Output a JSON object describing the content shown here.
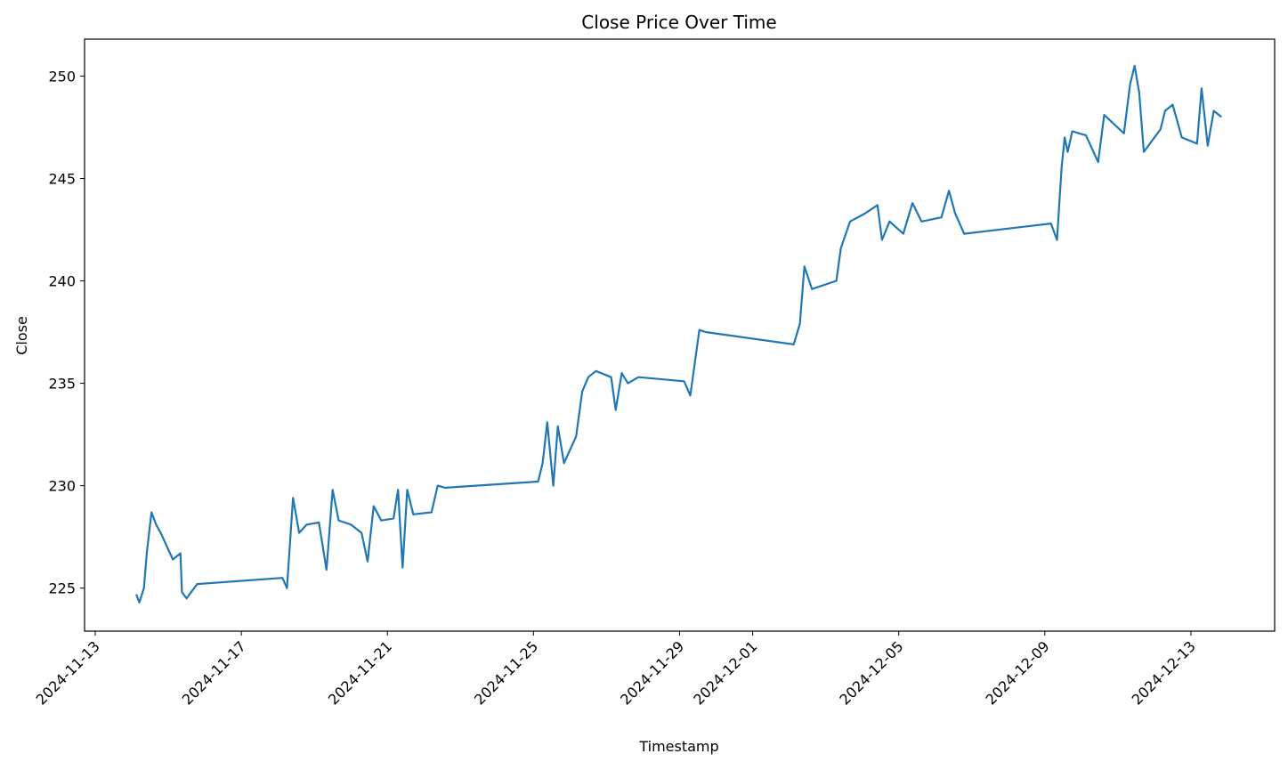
{
  "chart_data": {
    "type": "line",
    "title": "Close Price Over Time",
    "x_label": "Timestamp",
    "y_label": "Close",
    "x": [
      "2024-11-14 03:00",
      "2024-11-14 05:00",
      "2024-11-14 08:00",
      "2024-11-14 10:00",
      "2024-11-14 13:00",
      "2024-11-14 16:00",
      "2024-11-14 19:00",
      "2024-11-15 03:00",
      "2024-11-15 08:00",
      "2024-11-15 09:00",
      "2024-11-15 12:00",
      "2024-11-15 19:00",
      "2024-11-18 03:00",
      "2024-11-18 06:00",
      "2024-11-18 10:00",
      "2024-11-18 14:00",
      "2024-11-18 19:00",
      "2024-11-19 03:00",
      "2024-11-19 08:00",
      "2024-11-19 12:00",
      "2024-11-19 16:00",
      "2024-11-20 00:00",
      "2024-11-20 07:00",
      "2024-11-20 11:00",
      "2024-11-20 15:00",
      "2024-11-20 20:00",
      "2024-11-21 04:00",
      "2024-11-21 07:00",
      "2024-11-21 10:00",
      "2024-11-21 13:00",
      "2024-11-21 17:00",
      "2024-11-22 05:00",
      "2024-11-22 09:00",
      "2024-11-22 14:00",
      "2024-11-25 03:00",
      "2024-11-25 06:00",
      "2024-11-25 09:00",
      "2024-11-25 13:00",
      "2024-11-25 16:00",
      "2024-11-25 20:00",
      "2024-11-26 04:00",
      "2024-11-26 08:00",
      "2024-11-26 12:00",
      "2024-11-26 17:00",
      "2024-11-27 03:00",
      "2024-11-27 06:00",
      "2024-11-27 10:00",
      "2024-11-27 14:00",
      "2024-11-27 21:00",
      "2024-11-29 03:00",
      "2024-11-29 07:00",
      "2024-11-29 13:00",
      "2024-11-29 17:00",
      "2024-12-02 03:00",
      "2024-12-02 07:00",
      "2024-12-02 10:00",
      "2024-12-02 15:00",
      "2024-12-03 07:00",
      "2024-12-03 10:00",
      "2024-12-03 16:00",
      "2024-12-04 02:00",
      "2024-12-04 10:00",
      "2024-12-04 13:00",
      "2024-12-04 18:00",
      "2024-12-05 03:00",
      "2024-12-05 09:00",
      "2024-12-05 15:00",
      "2024-12-06 04:00",
      "2024-12-06 09:00",
      "2024-12-06 13:00",
      "2024-12-06 19:00",
      "2024-12-09 04:00",
      "2024-12-09 08:00",
      "2024-12-09 11:00",
      "2024-12-09 13:00",
      "2024-12-09 15:00",
      "2024-12-09 18:00",
      "2024-12-10 03:00",
      "2024-12-10 11:00",
      "2024-12-10 15:00",
      "2024-12-11 04:00",
      "2024-12-11 08:00",
      "2024-12-11 11:00",
      "2024-12-11 14:00",
      "2024-12-11 17:00",
      "2024-12-12 04:00",
      "2024-12-12 07:00",
      "2024-12-12 12:00",
      "2024-12-12 18:00",
      "2024-12-13 04:00",
      "2024-12-13 07:00",
      "2024-12-13 11:00",
      "2024-12-13 15:00",
      "2024-12-13 20:00"
    ],
    "values": [
      224.7,
      224.3,
      225.0,
      226.8,
      228.7,
      228.1,
      227.7,
      226.4,
      226.7,
      224.8,
      224.5,
      225.2,
      225.5,
      225.0,
      229.4,
      227.7,
      228.1,
      228.2,
      225.9,
      229.8,
      228.3,
      228.1,
      227.7,
      226.3,
      229.0,
      228.3,
      228.4,
      229.8,
      226.0,
      229.8,
      228.6,
      228.7,
      230.0,
      229.9,
      230.2,
      231.1,
      233.1,
      230.0,
      232.9,
      231.1,
      232.4,
      234.6,
      235.3,
      235.6,
      235.3,
      233.7,
      235.5,
      235.0,
      235.3,
      235.1,
      234.4,
      237.6,
      237.5,
      236.9,
      237.9,
      240.7,
      239.6,
      240.0,
      241.6,
      242.9,
      243.3,
      243.7,
      242.0,
      242.9,
      242.3,
      243.8,
      242.9,
      243.1,
      244.4,
      243.3,
      242.3,
      242.8,
      242.0,
      245.5,
      247.0,
      246.3,
      247.3,
      247.1,
      245.8,
      248.1,
      247.2,
      249.6,
      250.5,
      249.2,
      246.3,
      247.4,
      248.3,
      248.6,
      247.0,
      246.7,
      249.4,
      246.6,
      248.3,
      248.0
    ],
    "color": "#1f77b4",
    "xlim": [
      "2024-11-12 17:00",
      "2024-12-15 07:00"
    ],
    "xticks": [
      "2024-11-13",
      "2024-11-17",
      "2024-11-21",
      "2024-11-25",
      "2024-11-29",
      "2024-12-01",
      "2024-12-05",
      "2024-12-09",
      "2024-12-13"
    ],
    "ylim": [
      222.9,
      251.8
    ],
    "yticks": [
      225,
      230,
      235,
      240,
      245,
      250
    ]
  }
}
